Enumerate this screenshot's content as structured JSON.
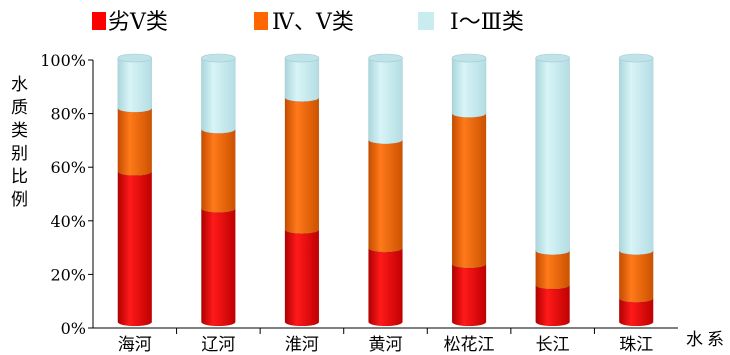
{
  "chart_data": {
    "type": "bar",
    "stacked": true,
    "orientation": "vertical",
    "style": "3d-cylinder",
    "categories": [
      "海河",
      "辽河",
      "淮河",
      "黄河",
      "松花江",
      "长江",
      "珠江"
    ],
    "series": [
      {
        "name": "劣Ⅴ类",
        "color": "#ff0000",
        "values": [
          57,
          43,
          35,
          28,
          22,
          14,
          9
        ]
      },
      {
        "name": "Ⅳ、Ⅴ类",
        "color": "#ff6600",
        "values": [
          24,
          30,
          50,
          41,
          57,
          13,
          18
        ]
      },
      {
        "name": "Ⅰ～Ⅲ类",
        "color": "#c9ecf0",
        "values": [
          19,
          27,
          15,
          31,
          21,
          73,
          73
        ]
      }
    ],
    "yticks": [
      "0%",
      "20%",
      "40%",
      "60%",
      "80%",
      "100%"
    ],
    "ylim": [
      0,
      100
    ],
    "xlabel": "水系",
    "ylabel": "水质类别比例",
    "legend_position": "top",
    "grid": false
  }
}
